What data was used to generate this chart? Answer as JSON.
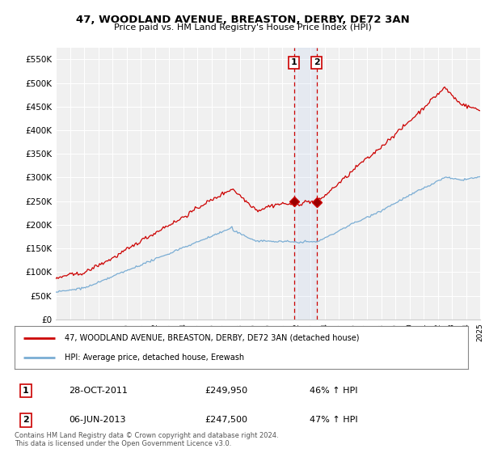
{
  "title": "47, WOODLAND AVENUE, BREASTON, DERBY, DE72 3AN",
  "subtitle": "Price paid vs. HM Land Registry's House Price Index (HPI)",
  "ylabel_ticks": [
    "£0",
    "£50K",
    "£100K",
    "£150K",
    "£200K",
    "£250K",
    "£300K",
    "£350K",
    "£400K",
    "£450K",
    "£500K",
    "£550K"
  ],
  "ytick_values": [
    0,
    50000,
    100000,
    150000,
    200000,
    250000,
    300000,
    350000,
    400000,
    450000,
    500000,
    550000
  ],
  "ylim": [
    0,
    575000
  ],
  "legend_line1": "47, WOODLAND AVENUE, BREASTON, DERBY, DE72 3AN (detached house)",
  "legend_line2": "HPI: Average price, detached house, Erewash",
  "transaction1_date": "28-OCT-2011",
  "transaction1_price": "£249,950",
  "transaction1_hpi": "46% ↑ HPI",
  "transaction2_date": "06-JUN-2013",
  "transaction2_price": "£247,500",
  "transaction2_hpi": "47% ↑ HPI",
  "footer": "Contains HM Land Registry data © Crown copyright and database right 2024.\nThis data is licensed under the Open Government Licence v3.0.",
  "red_color": "#cc0000",
  "blue_color": "#7aadd4",
  "marker1_x": 2011.83,
  "marker1_y": 249950,
  "marker2_x": 2013.43,
  "marker2_y": 247500,
  "vline_x1": 2011.83,
  "vline_x2": 2013.43,
  "xmin": 1995,
  "xmax": 2025,
  "background_color": "#ffffff",
  "plot_bg_color": "#f0f0f0"
}
